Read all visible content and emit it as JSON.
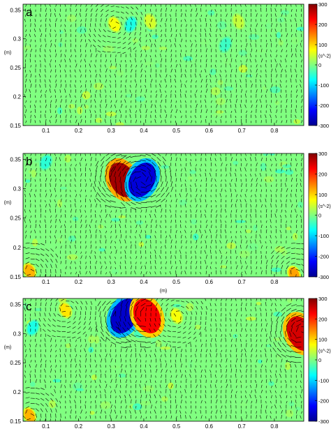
{
  "chart_data": [
    {
      "type": "heatmap",
      "panel_label": "a",
      "xlabel": "",
      "ylabel": "(m)",
      "x_ticks": [
        "0.1",
        "0.2",
        "0.3",
        "0.4",
        "0.5",
        "0.6",
        "0.7",
        "0.8"
      ],
      "y_ticks": [
        "0.15",
        "0.2",
        "0.25",
        "0.3",
        "0.35"
      ],
      "xlim": [
        0.03,
        0.89
      ],
      "ylim": [
        0.15,
        0.36
      ],
      "colorbar_label": "(s^-2)",
      "colorbar_ticks": [
        "300",
        "200",
        "100",
        "0",
        "-100",
        "-200",
        "-300"
      ],
      "clim": [
        -300,
        300
      ],
      "features": [
        {
          "x": 0.31,
          "y": 0.325,
          "value": 70
        },
        {
          "x": 0.36,
          "y": 0.325,
          "value": -60
        },
        {
          "x": 0.42,
          "y": 0.33,
          "value": 50
        },
        {
          "x": 0.65,
          "y": 0.29,
          "value": -40
        },
        {
          "x": 0.69,
          "y": 0.33,
          "value": 40
        }
      ]
    },
    {
      "type": "heatmap",
      "panel_label": "b",
      "xlabel": "(m)",
      "ylabel": "(m)",
      "x_ticks": [
        "0.1",
        "0.2",
        "0.3",
        "0.4",
        "0.5",
        "0.6",
        "0.7",
        "0.8"
      ],
      "y_ticks": [
        "0.15",
        "0.2",
        "0.25",
        "0.3",
        "0.35"
      ],
      "xlim": [
        0.03,
        0.89
      ],
      "ylim": [
        0.15,
        0.36
      ],
      "colorbar_label": "(s^-2)",
      "colorbar_ticks": [
        "300",
        "200",
        "100",
        "0",
        "-100",
        "-200",
        "-300"
      ],
      "clim": [
        -300,
        300
      ],
      "features": [
        {
          "x": 0.335,
          "y": 0.315,
          "value": 280
        },
        {
          "x": 0.395,
          "y": 0.315,
          "value": -250
        },
        {
          "x": 0.1,
          "y": 0.345,
          "value": -50
        },
        {
          "x": 0.05,
          "y": 0.16,
          "value": 120
        },
        {
          "x": 0.86,
          "y": 0.155,
          "value": 130
        }
      ]
    },
    {
      "type": "heatmap",
      "panel_label": "c",
      "xlabel": "(m)",
      "ylabel": "(m)",
      "x_ticks": [
        "0.1",
        "0.2",
        "0.3",
        "0.4",
        "0.5",
        "0.6",
        "0.7",
        "0.8"
      ],
      "y_ticks": [
        "0.15",
        "0.2",
        "0.25",
        "0.3",
        "0.35"
      ],
      "xlim": [
        0.03,
        0.89
      ],
      "ylim": [
        0.15,
        0.36
      ],
      "colorbar_label": "(s^-2)",
      "colorbar_ticks": [
        "300",
        "200",
        "100",
        "0",
        "-100",
        "-200",
        "-300"
      ],
      "clim": [
        -300,
        300
      ],
      "features": [
        {
          "x": 0.34,
          "y": 0.33,
          "value": -260
        },
        {
          "x": 0.41,
          "y": 0.33,
          "value": 230
        },
        {
          "x": 0.16,
          "y": 0.34,
          "value": 90
        },
        {
          "x": 0.06,
          "y": 0.31,
          "value": -60
        },
        {
          "x": 0.5,
          "y": 0.33,
          "value": 70
        },
        {
          "x": 0.88,
          "y": 0.3,
          "value": 250
        },
        {
          "x": 0.05,
          "y": 0.16,
          "value": 120
        }
      ]
    }
  ],
  "colors": {
    "background": "#80FF80",
    "colormap": [
      "#00008F",
      "#0000FF",
      "#00FFFF",
      "#80FF80",
      "#FFFF00",
      "#FF0000",
      "#800000"
    ]
  }
}
